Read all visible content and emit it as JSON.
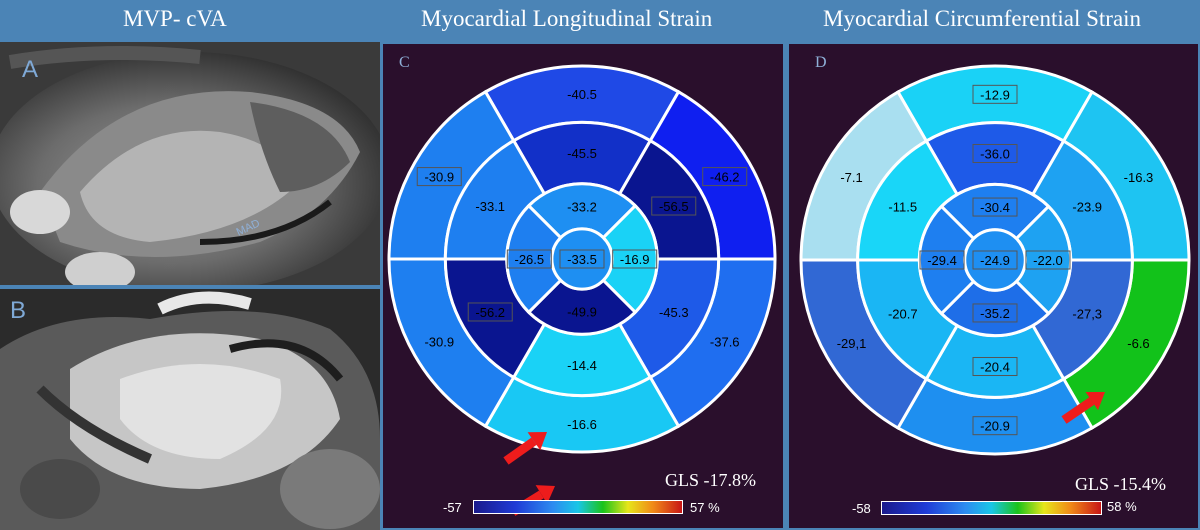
{
  "titles": {
    "left": "MVP- cVA",
    "middle": "Myocardial Longitudinal Strain",
    "right": "Myocardial Circumferential Strain"
  },
  "panels": {
    "a": {
      "label": "A",
      "annotation": "MAD"
    },
    "b": {
      "label": "B"
    },
    "c": {
      "label": "C",
      "gls": "GLS -17.8%",
      "scale_min": "-57",
      "scale_max": "57 %",
      "segments": {
        "basal": [
          "-40.5",
          "-46.2",
          "-37.6",
          "-16.6",
          "-30.9",
          "-30.9"
        ],
        "mid": [
          "-45.5",
          "-56.5",
          "-45.3",
          "-14.4",
          "-56.2",
          "-33.1"
        ],
        "apical": [
          "-33.2",
          "-16.9",
          "-49.9",
          "-26.5"
        ],
        "apex": "-33.5"
      }
    },
    "d": {
      "label": "D",
      "gls": "GLS -15.4%",
      "scale_min": "-58",
      "scale_max": "58 %",
      "segments": {
        "basal": [
          "-12.9",
          "-16.3",
          "-6.6",
          "-20.9",
          "-29,1",
          "-7.1"
        ],
        "mid": [
          "-36.0",
          "-23.9",
          "-27,3",
          "-20.4",
          "-20.7",
          "-11.5"
        ],
        "apical": [
          "-30.4",
          "-22.0",
          "-35.2",
          "-29.4"
        ],
        "apex": "-24.9"
      }
    }
  },
  "colors": {
    "panel_bg": "#2a0f2c",
    "frame": "#4b84b6",
    "arrow": "#ee1c1c",
    "seg_c": {
      "basal": [
        "#1f49e6",
        "#0f1ff0",
        "#1f6ef0",
        "#19c8f4",
        "#1e7ff0",
        "#1e7ff0"
      ],
      "mid": [
        "#1230c8",
        "#0a1590",
        "#1e5ae8",
        "#1ad2f6",
        "#0a1590",
        "#1e7ff0"
      ],
      "apical": [
        "#1e8ff2",
        "#1ad2f6",
        "#0a1590",
        "#1e7ff0"
      ],
      "apex": "#1e8ff2"
    },
    "seg_d": {
      "basal": [
        "#1ad2f6",
        "#1ec4f2",
        "#12c21a",
        "#1e8ff0",
        "#3168d4",
        "#a9dff0"
      ],
      "mid": [
        "#1e5ae8",
        "#1ea2f2",
        "#3168d4",
        "#1ab6f4",
        "#1ab6f4",
        "#19d6f8"
      ],
      "apical": [
        "#1e7ff0",
        "#1ea2f2",
        "#1e6ee8",
        "#1e7ff0"
      ],
      "apex": "#1e8ff2"
    }
  }
}
